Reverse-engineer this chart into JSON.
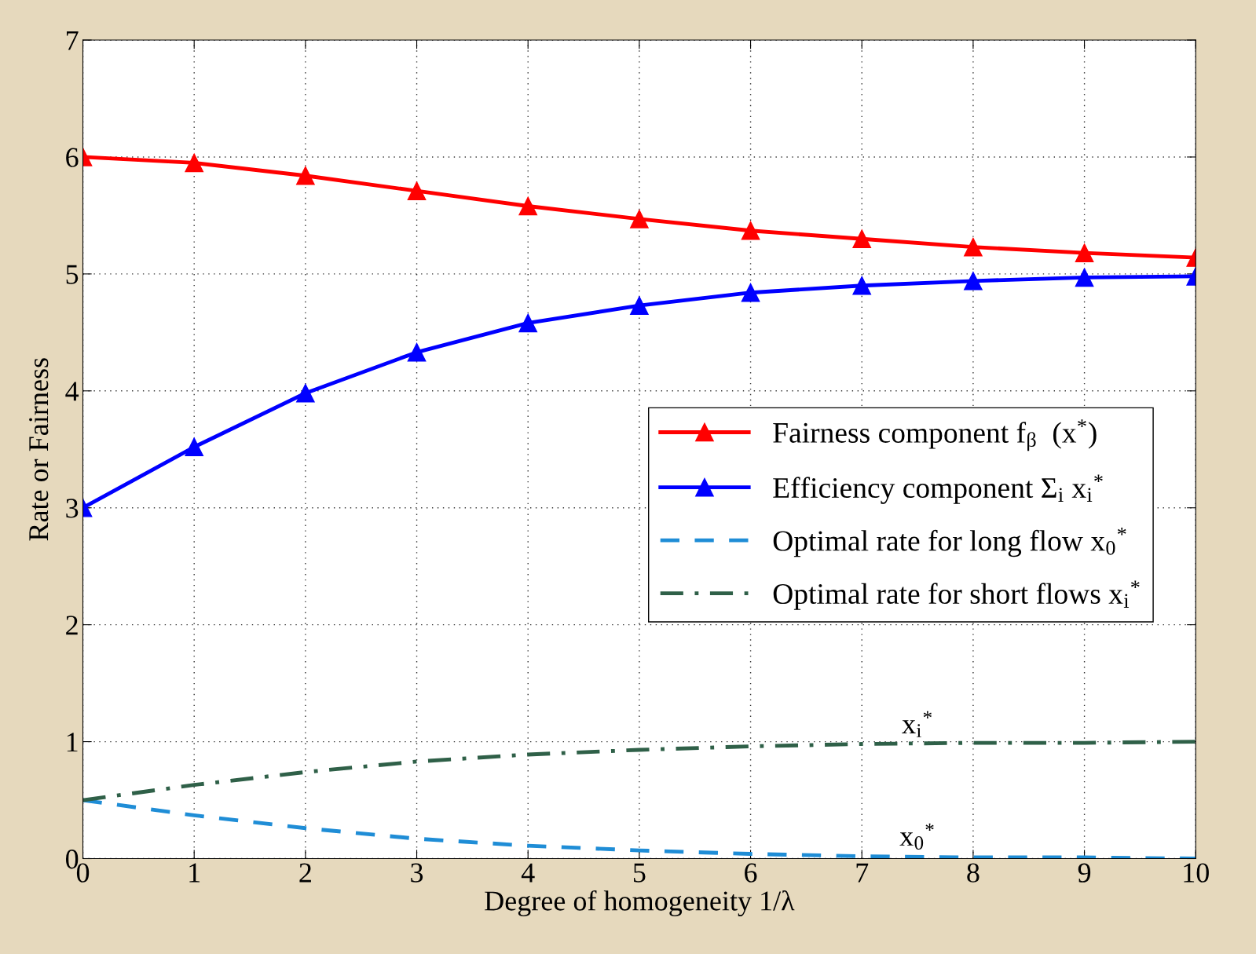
{
  "chart_data": {
    "type": "line",
    "xlabel": "Degree of homogeneity 1/λ",
    "ylabel": "Rate or Fairness",
    "x": [
      0,
      1,
      2,
      3,
      4,
      5,
      6,
      7,
      8,
      9,
      10
    ],
    "series": [
      {
        "name": "Fairness component f$_{β}$  (x$^{*}$)",
        "color": "#ff0000",
        "marker": "triangle",
        "line_style": "solid",
        "values": [
          6.0,
          5.95,
          5.84,
          5.71,
          5.58,
          5.47,
          5.37,
          5.3,
          5.23,
          5.18,
          5.14
        ]
      },
      {
        "name": "Efficiency component Σ$_{i}$ x$_{i}$$^{*}$",
        "color": "#0000ff",
        "marker": "triangle",
        "line_style": "solid",
        "values": [
          3.0,
          3.52,
          3.98,
          4.33,
          4.58,
          4.73,
          4.84,
          4.9,
          4.94,
          4.97,
          4.98
        ]
      },
      {
        "name": "Optimal rate for long flow x$_{0}$$^{*}$",
        "color": "#1f8dd6",
        "marker": "none",
        "line_style": "dashed",
        "values": [
          0.5,
          0.37,
          0.26,
          0.17,
          0.11,
          0.07,
          0.04,
          0.02,
          0.01,
          0.01,
          0.0
        ]
      },
      {
        "name": "Optimal rate for short flows x$_{i}$$^{*}$",
        "color": "#2f6048",
        "marker": "none",
        "line_style": "dashdot",
        "values": [
          0.5,
          0.63,
          0.74,
          0.83,
          0.89,
          0.93,
          0.96,
          0.98,
          0.99,
          0.99,
          1.0
        ]
      }
    ],
    "annotations": [
      {
        "text": "x$_{i}$$^{*}$",
        "x": 7.5,
        "y": 1.02
      },
      {
        "text": "x$_{0}$$^{*}$",
        "x": 7.5,
        "y": 0.06
      }
    ],
    "xlim": [
      0,
      10
    ],
    "ylim": [
      0,
      7
    ],
    "xticks": [
      0,
      1,
      2,
      3,
      4,
      5,
      6,
      7,
      8,
      9,
      10
    ],
    "yticks": [
      0,
      1,
      2,
      3,
      4,
      5,
      6,
      7
    ],
    "grid": true,
    "legend": "right"
  }
}
